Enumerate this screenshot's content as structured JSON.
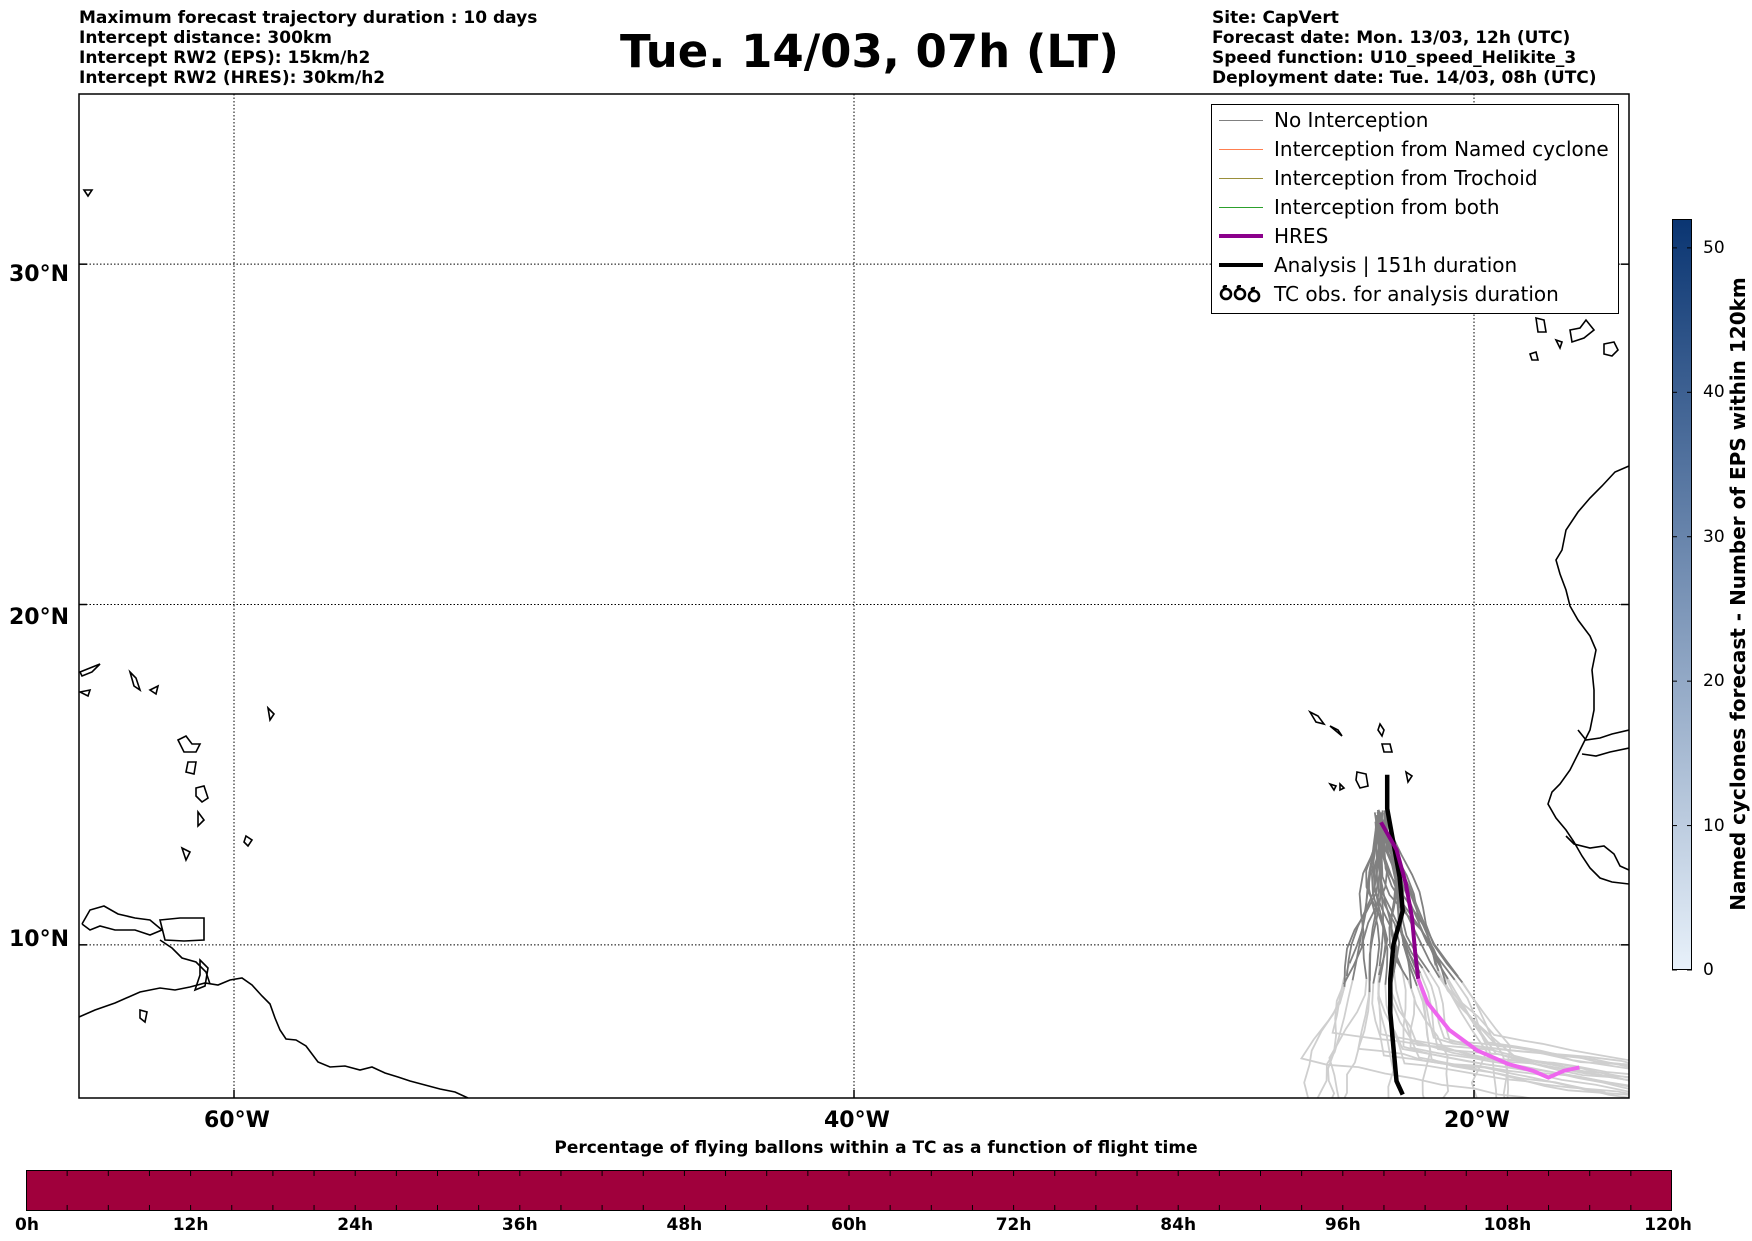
{
  "header_left": [
    "Maximum forecast trajectory duration : 10 days",
    "Intercept distance: 300km",
    "Intercept RW2 (EPS):  15km/h2",
    "Intercept RW2 (HRES): 30km/h2"
  ],
  "header_right": [
    "Site: CapVert",
    "Forecast date: Mon. 13/03, 12h (UTC)",
    "Speed function: U10_speed_Helikite_3",
    "Deployment date: Tue. 14/03, 08h (UTC)"
  ],
  "title": "Tue. 14/03, 07h (LT)",
  "map": {
    "lon_range": [
      -65,
      -15
    ],
    "lat_range": [
      5.5,
      35
    ],
    "lat_ticks": [
      {
        "value": 30,
        "label": "30°N"
      },
      {
        "value": 20,
        "label": "20°N"
      },
      {
        "value": 10,
        "label": "10°N"
      }
    ],
    "lon_ticks": [
      {
        "value": -60,
        "label": "60°W"
      },
      {
        "value": -40,
        "label": "40°W"
      },
      {
        "value": -20,
        "label": "20°W"
      }
    ],
    "grid": true
  },
  "legend": {
    "placement": "top-right",
    "items": [
      {
        "label": "No Interception",
        "color": "#808080",
        "style": "thin"
      },
      {
        "label": "Interception from Named cyclone",
        "color": "#ff7f50",
        "style": "thin"
      },
      {
        "label": "Interception from Trochoid",
        "color": "#9a8f3a",
        "style": "thin"
      },
      {
        "label": "Interception from both",
        "color": "#2ca02c",
        "style": "thin"
      },
      {
        "label": "HRES",
        "color": "#8b008b",
        "style": "thick"
      },
      {
        "label": "Analysis | 151h duration",
        "color": "#000000",
        "style": "thick"
      },
      {
        "label": "TC obs. for analysis duration",
        "color": "#000000",
        "style": "tc-symbol"
      }
    ]
  },
  "tracks": {
    "analysis": [
      [
        -22.8,
        15.0
      ],
      [
        -22.8,
        14.0
      ],
      [
        -22.6,
        13.0
      ],
      [
        -22.4,
        12.0
      ],
      [
        -22.3,
        11.0
      ],
      [
        -22.6,
        10.0
      ],
      [
        -22.7,
        9.0
      ],
      [
        -22.7,
        8.0
      ],
      [
        -22.6,
        7.0
      ],
      [
        -22.5,
        6.0
      ],
      [
        -22.3,
        5.6
      ]
    ],
    "hres_early": [
      [
        -23.0,
        13.6
      ],
      [
        -22.5,
        12.8
      ],
      [
        -22.2,
        11.8
      ],
      [
        -22.0,
        10.8
      ],
      [
        -21.9,
        9.8
      ],
      [
        -21.8,
        9.0
      ]
    ],
    "hres_late": [
      [
        -21.8,
        9.0
      ],
      [
        -21.5,
        8.3
      ],
      [
        -20.8,
        7.5
      ],
      [
        -19.9,
        6.9
      ],
      [
        -18.9,
        6.5
      ],
      [
        -18.1,
        6.3
      ],
      [
        -17.6,
        6.1
      ],
      [
        -17.1,
        6.3
      ],
      [
        -16.6,
        6.4
      ]
    ]
  },
  "bottom_colorbar": {
    "title": "Percentage of flying ballons within a TC as a function of flight time",
    "color": "#a0003c",
    "ticks": [
      "0h",
      "12h",
      "24h",
      "36h",
      "48h",
      "60h",
      "72h",
      "84h",
      "96h",
      "108h",
      "120h"
    ]
  },
  "right_colorbar": {
    "title": "Named cyclones forecast - Number of EPS within 120km",
    "ticks": [
      0,
      10,
      20,
      30,
      40,
      50
    ],
    "max": 52,
    "color_low": "#e8f1fa",
    "color_high": "#0a3572"
  }
}
